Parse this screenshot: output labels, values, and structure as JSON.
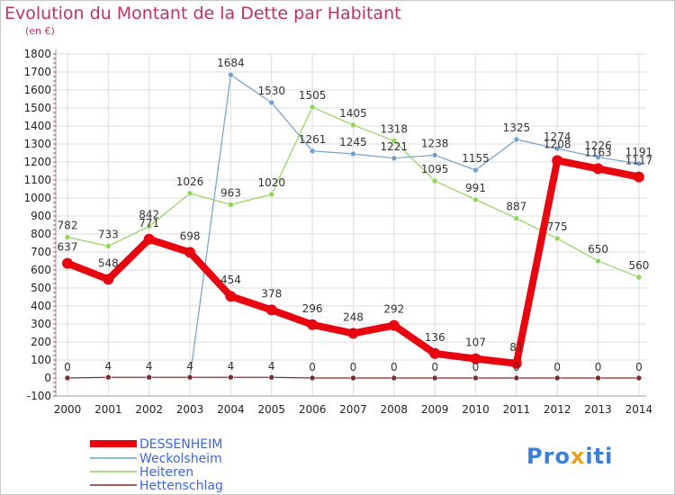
{
  "title": "Evolution du Montant de la Dette par Habitant",
  "subtitle": "(en €)",
  "brand": {
    "text": "Proxiti",
    "letters": [
      "P",
      "r",
      "o",
      "x",
      "i",
      "t",
      "i"
    ],
    "colors": [
      "#3b7fd6",
      "#3b7fd6",
      "#3b7fd6",
      "#e8a020",
      "#3b7fd6",
      "#3b7fd6",
      "#3b7fd6"
    ]
  },
  "chart_data": {
    "type": "line",
    "categories": [
      "2000",
      "2001",
      "2002",
      "2003",
      "2004",
      "2005",
      "2006",
      "2007",
      "2008",
      "2009",
      "2010",
      "2011",
      "2012",
      "2013",
      "2014"
    ],
    "ylim": [
      -100,
      1800
    ],
    "yticks": [
      -100,
      0,
      100,
      200,
      300,
      400,
      500,
      600,
      700,
      800,
      900,
      1000,
      1100,
      1200,
      1300,
      1400,
      1500,
      1600,
      1700,
      1800
    ],
    "grid": true,
    "legend_position": "bottom-left",
    "series": [
      {
        "name": "DESSENHEIM",
        "color": "#e8050f",
        "width": 8,
        "marker": 6,
        "values": [
          637,
          548,
          771,
          698,
          454,
          378,
          296,
          248,
          292,
          136,
          107,
          81,
          1208,
          1163,
          1117
        ],
        "labels": [
          "637",
          "548",
          "771",
          "698",
          "454",
          "378",
          "296",
          "248",
          "292",
          "136",
          "107",
          "81",
          "1208",
          "1163",
          "1117"
        ]
      },
      {
        "name": "Weckolsheim",
        "color": "#6fa0d0",
        "width": 1.2,
        "marker": 3,
        "values": [
          null,
          null,
          null,
          0,
          1684,
          1530,
          1261,
          1245,
          1221,
          1238,
          1155,
          1325,
          1274,
          1226,
          1191
        ],
        "labels": [
          "",
          "",
          "",
          "",
          "1684",
          "1530",
          "1261",
          "1245",
          "1221",
          "1238",
          "1155",
          "1325",
          "1274",
          "1226",
          "1191"
        ]
      },
      {
        "name": "Heiteren",
        "color": "#8ed45a",
        "width": 1.2,
        "marker": 3,
        "values": [
          782,
          733,
          842,
          1026,
          963,
          1020,
          1505,
          1405,
          1318,
          1095,
          991,
          887,
          775,
          650,
          560
        ],
        "labels": [
          "782",
          "733",
          "842",
          "1026",
          "963",
          "1020",
          "1505",
          "1405",
          "1318",
          "1095",
          "991",
          "887",
          "775",
          "650",
          "560"
        ]
      },
      {
        "name": "Hettenschlag",
        "color": "#7a2b2b",
        "width": 1.2,
        "marker": 3,
        "values": [
          0,
          4,
          4,
          4,
          4,
          4,
          0,
          0,
          0,
          0,
          0,
          0,
          0,
          0,
          0
        ],
        "labels": [
          "0",
          "4",
          "4",
          "4",
          "4",
          "4",
          "0",
          "0",
          "0",
          "0",
          "0",
          "0",
          "0",
          "0",
          "0"
        ]
      }
    ]
  }
}
